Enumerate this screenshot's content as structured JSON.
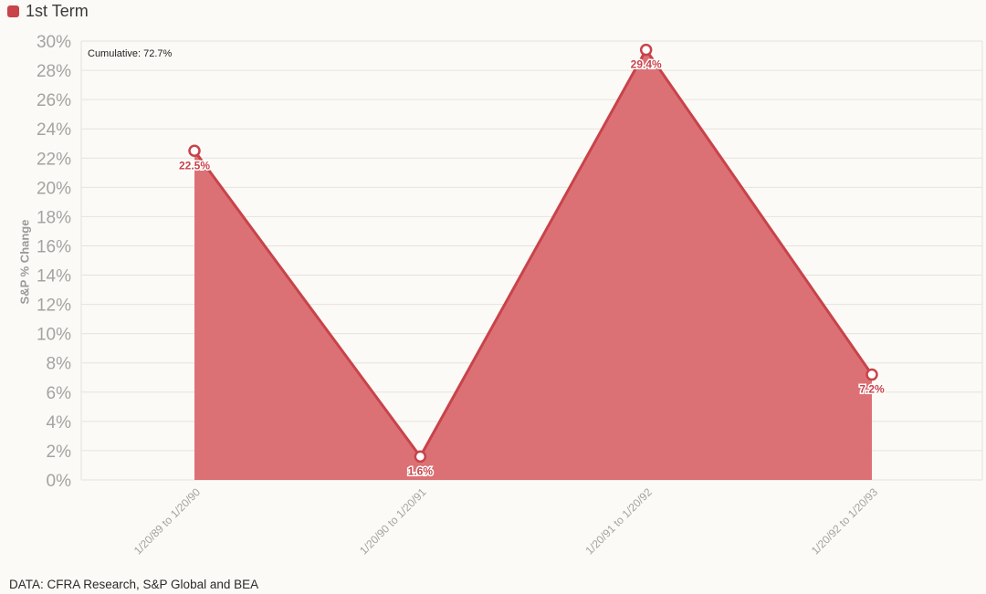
{
  "legend": {
    "label": "1st Term",
    "color": "#c8434a"
  },
  "source": "DATA: CFRA Research, S&P Global and BEA",
  "chart_data": {
    "type": "area",
    "title": "",
    "xlabel": "",
    "ylabel": "S&P % Change",
    "categories": [
      "1/20/89 to 1/20/90",
      "1/20/90 to 1/20/91",
      "1/20/91 to 1/20/92",
      "1/20/92 to 1/20/93"
    ],
    "series": [
      {
        "name": "1st Term",
        "values": [
          22.5,
          1.6,
          29.4,
          7.2
        ],
        "labels": [
          "22.5%",
          "1.6%",
          "29.4%",
          "7.2%"
        ]
      }
    ],
    "ylim": [
      0,
      30
    ],
    "yticks": [
      0,
      2,
      4,
      6,
      8,
      10,
      12,
      14,
      16,
      18,
      20,
      22,
      24,
      26,
      28,
      30
    ],
    "ytick_suffix": "%",
    "annotation": "Cumulative: 72.7%",
    "grid": true,
    "legend_position": "top-left",
    "colors": {
      "fill": "#dc7175",
      "line": "#c8434a",
      "grid": "#e6e3de",
      "tick": "#a3a3a3"
    }
  }
}
